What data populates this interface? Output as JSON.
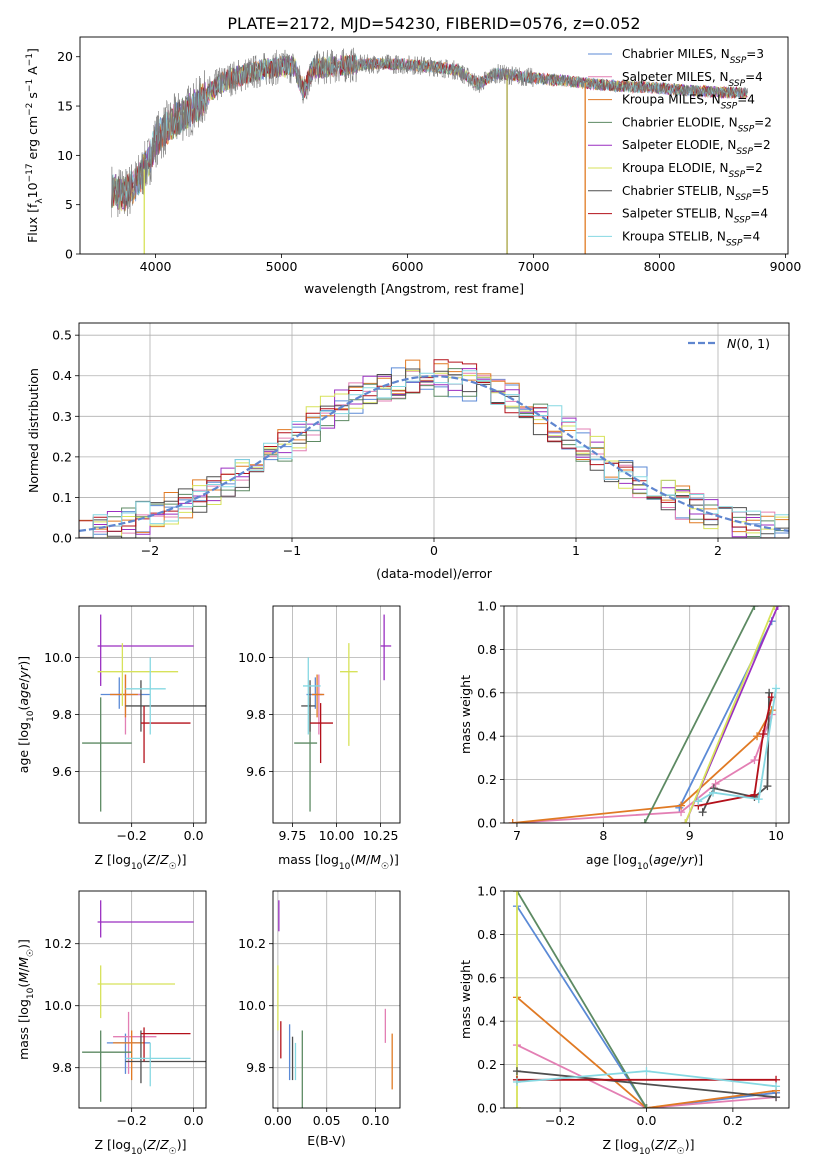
{
  "figure_title": "PLATE=2172, MJD=54230, FIBERID=0576, z=0.052",
  "colors": {
    "Chabrier MILES": "#5b8ad6",
    "Salpeter MILES": "#e37fb4",
    "Kroupa MILES": "#e07a24",
    "Chabrier ELODIE": "#5d8a63",
    "Salpeter ELODIE": "#9a2fc1",
    "Kroupa ELODIE": "#d7e25a",
    "Chabrier STELIB": "#4f4f4f",
    "Salpeter STELIB": "#b3101a",
    "Kroupa STELIB": "#86d8e2",
    "normal": "#5f86cf",
    "grid": "#b0b0b0"
  },
  "chart_data": [
    {
      "id": "spectrum",
      "type": "line",
      "title": "PLATE=2172, MJD=54230, FIBERID=0576, z=0.052",
      "xlabel": "wavelength [Angstrom, rest frame]",
      "ylabel": "Flux [f_λ 10^-17 erg cm^-2 s^-1 A^-1]",
      "xlim": [
        3400,
        9020
      ],
      "ylim": [
        0,
        22
      ],
      "xticks": [
        4000,
        5000,
        6000,
        7000,
        8000,
        9000
      ],
      "yticks": [
        0,
        5,
        10,
        15,
        20
      ],
      "grid": false,
      "legend": "top-right",
      "series": [
        {
          "name": "Chabrier MILES, N_SSP=3",
          "nssp": "3"
        },
        {
          "name": "Salpeter MILES, N_SSP=4",
          "nssp": "4"
        },
        {
          "name": "Kroupa MILES, N_SSP=4",
          "nssp": "4"
        },
        {
          "name": "Chabrier ELODIE, N_SSP=2",
          "nssp": "2"
        },
        {
          "name": "Salpeter ELODIE, N_SSP=2",
          "nssp": "2"
        },
        {
          "name": "Kroupa ELODIE, N_SSP=2",
          "nssp": "2"
        },
        {
          "name": "Chabrier STELIB, N_SSP=5",
          "nssp": "5"
        },
        {
          "name": "Salpeter STELIB, N_SSP=4",
          "nssp": "4"
        },
        {
          "name": "Kroupa STELIB, N_SSP=4",
          "nssp": "4"
        }
      ],
      "continuum": [
        [
          3650,
          6.5
        ],
        [
          3750,
          6.0
        ],
        [
          3850,
          7.2
        ],
        [
          3950,
          9.5
        ],
        [
          4000,
          11.5
        ],
        [
          4100,
          13.0
        ],
        [
          4200,
          14.0
        ],
        [
          4300,
          14.8
        ],
        [
          4400,
          16.0
        ],
        [
          4500,
          17.2
        ],
        [
          4600,
          17.8
        ],
        [
          4700,
          18.2
        ],
        [
          4800,
          18.5
        ],
        [
          4900,
          18.8
        ],
        [
          5000,
          19.0
        ],
        [
          5100,
          19.0
        ],
        [
          5175,
          16.5
        ],
        [
          5250,
          18.8
        ],
        [
          5400,
          19.0
        ],
        [
          5600,
          19.2
        ],
        [
          5800,
          19.3
        ],
        [
          6000,
          19.2
        ],
        [
          6200,
          19.0
        ],
        [
          6400,
          18.6
        ],
        [
          6563,
          17.2
        ],
        [
          6700,
          18.3
        ],
        [
          6900,
          18.0
        ],
        [
          7100,
          17.7
        ],
        [
          7300,
          17.5
        ],
        [
          7500,
          17.2
        ],
        [
          7700,
          17.0
        ],
        [
          7900,
          16.9
        ],
        [
          8100,
          16.7
        ],
        [
          8300,
          16.5
        ],
        [
          8500,
          16.4
        ],
        [
          8700,
          16.3
        ]
      ],
      "data_range": [
        3650,
        8700
      ],
      "dropouts": [
        {
          "x": 3910,
          "y": 0
        },
        {
          "x": 6790,
          "y": 0
        },
        {
          "x": 7410,
          "y": 0
        }
      ]
    },
    {
      "id": "residuals",
      "type": "histogram",
      "xlabel": "(data-model)/error",
      "ylabel": "Normed distribution",
      "xlim": [
        -2.5,
        2.5
      ],
      "ylim": [
        0,
        0.53
      ],
      "xticks": [
        -2,
        -1,
        0,
        1,
        2
      ],
      "yticks": [
        0.0,
        0.1,
        0.2,
        0.3,
        0.4,
        0.5
      ],
      "grid": true,
      "legend": "top-right",
      "legend_label": "N(0,1)",
      "bin_width": 0.1
    },
    {
      "id": "age_vs_Z",
      "type": "errorbar",
      "xlabel": "Z [log10(Z/Z☉)]",
      "ylabel": "age [log10(age/yr)]",
      "xlim": [
        -0.37,
        0.04
      ],
      "ylim": [
        9.42,
        10.18
      ],
      "xticks": [
        -0.2,
        0.0
      ],
      "yticks": [
        9.6,
        9.8,
        10.0
      ],
      "grid": true,
      "points": [
        {
          "model": "Chabrier MILES",
          "x": -0.24,
          "y": 9.87,
          "xlo": -0.3,
          "xhi": -0.14,
          "ylo": 9.82,
          "yhi": 9.93
        },
        {
          "model": "Salpeter MILES",
          "x": -0.22,
          "y": 9.87,
          "xlo": -0.27,
          "xhi": -0.17,
          "ylo": 9.73,
          "yhi": 9.94
        },
        {
          "model": "Kroupa MILES",
          "x": -0.22,
          "y": 9.87,
          "xlo": -0.27,
          "xhi": -0.18,
          "ylo": 9.79,
          "yhi": 9.94
        },
        {
          "model": "Chabrier ELODIE",
          "x": -0.3,
          "y": 9.7,
          "xlo": -0.36,
          "xhi": -0.2,
          "ylo": 9.46,
          "yhi": 9.86
        },
        {
          "model": "Salpeter ELODIE",
          "x": -0.3,
          "y": 10.04,
          "xlo": -0.31,
          "xhi": 0.0,
          "ylo": 9.9,
          "yhi": 10.15
        },
        {
          "model": "Kroupa ELODIE",
          "x": -0.23,
          "y": 9.95,
          "xlo": -0.31,
          "xhi": -0.05,
          "ylo": 9.83,
          "yhi": 10.05
        },
        {
          "model": "Chabrier STELIB",
          "x": -0.17,
          "y": 9.83,
          "xlo": -0.22,
          "xhi": 0.04,
          "ylo": 9.74,
          "yhi": 9.92
        },
        {
          "model": "Salpeter STELIB",
          "x": -0.16,
          "y": 9.77,
          "xlo": -0.17,
          "xhi": -0.01,
          "ylo": 9.63,
          "yhi": 9.83
        },
        {
          "model": "Kroupa STELIB",
          "x": -0.14,
          "y": 9.89,
          "xlo": -0.22,
          "xhi": -0.09,
          "ylo": 9.73,
          "yhi": 10.0
        }
      ]
    },
    {
      "id": "age_vs_mass",
      "type": "errorbar",
      "xlabel": "mass [log10(M/M☉)]",
      "ylabel": "",
      "xlim": [
        9.64,
        10.36
      ],
      "ylim": [
        9.42,
        10.18
      ],
      "xticks": [
        9.75,
        10.0,
        10.25
      ],
      "yticks": [
        9.6,
        9.8,
        10.0
      ],
      "grid": true,
      "points": [
        {
          "model": "Chabrier MILES",
          "x": 9.88,
          "y": 9.87,
          "xlo": 9.83,
          "xhi": 9.92,
          "ylo": 9.82,
          "yhi": 9.93
        },
        {
          "model": "Salpeter MILES",
          "x": 9.9,
          "y": 9.87,
          "xlo": 9.86,
          "xhi": 9.93,
          "ylo": 9.73,
          "yhi": 9.94
        },
        {
          "model": "Kroupa MILES",
          "x": 9.89,
          "y": 9.87,
          "xlo": 9.86,
          "xhi": 9.93,
          "ylo": 9.79,
          "yhi": 9.94
        },
        {
          "model": "Chabrier ELODIE",
          "x": 9.85,
          "y": 9.7,
          "xlo": 9.76,
          "xhi": 9.89,
          "ylo": 9.46,
          "yhi": 9.86
        },
        {
          "model": "Salpeter ELODIE",
          "x": 10.27,
          "y": 10.04,
          "xlo": 10.25,
          "xhi": 10.31,
          "ylo": 9.92,
          "yhi": 10.15
        },
        {
          "model": "Kroupa ELODIE",
          "x": 10.07,
          "y": 9.95,
          "xlo": 10.02,
          "xhi": 10.12,
          "ylo": 9.69,
          "yhi": 10.05
        },
        {
          "model": "Chabrier STELIB",
          "x": 9.85,
          "y": 9.83,
          "xlo": 9.8,
          "xhi": 9.88,
          "ylo": 9.74,
          "yhi": 9.92
        },
        {
          "model": "Salpeter STELIB",
          "x": 9.91,
          "y": 9.77,
          "xlo": 9.85,
          "xhi": 9.98,
          "ylo": 9.63,
          "yhi": 9.84
        },
        {
          "model": "Kroupa STELIB",
          "x": 9.84,
          "y": 9.9,
          "xlo": 9.81,
          "xhi": 9.91,
          "ylo": 9.73,
          "yhi": 10.0
        }
      ]
    },
    {
      "id": "massweight_vs_age",
      "type": "line",
      "xlabel": "age [log10(age/yr)]",
      "ylabel": "mass weight",
      "xlim": [
        6.85,
        10.15
      ],
      "ylim": [
        0,
        1
      ],
      "xticks": [
        7,
        8,
        9,
        10
      ],
      "yticks": [
        0.0,
        0.2,
        0.4,
        0.6,
        0.8,
        1.0
      ],
      "grid": true,
      "series": [
        {
          "model": "Chabrier MILES",
          "points": [
            [
              8.88,
              0.07
            ],
            [
              9.95,
              0.93
            ]
          ]
        },
        {
          "model": "Salpeter MILES",
          "points": [
            [
              6.95,
              0.0
            ],
            [
              8.9,
              0.05
            ],
            [
              9.3,
              0.18
            ],
            [
              9.75,
              0.29
            ],
            [
              9.95,
              0.5
            ]
          ]
        },
        {
          "model": "Kroupa MILES",
          "points": [
            [
              6.95,
              0.0
            ],
            [
              8.9,
              0.08
            ],
            [
              9.78,
              0.4
            ],
            [
              9.95,
              0.52
            ]
          ]
        },
        {
          "model": "Chabrier ELODIE",
          "points": [
            [
              8.48,
              0.0
            ],
            [
              9.75,
              1.0
            ]
          ]
        },
        {
          "model": "Salpeter ELODIE",
          "points": [
            [
              8.95,
              0.0
            ],
            [
              10.02,
              1.0
            ]
          ]
        },
        {
          "model": "Kroupa ELODIE",
          "points": [
            [
              8.95,
              0.0
            ],
            [
              9.98,
              1.0
            ]
          ]
        },
        {
          "model": "Chabrier STELIB",
          "points": [
            [
              9.15,
              0.05
            ],
            [
              9.28,
              0.16
            ],
            [
              9.75,
              0.12
            ],
            [
              9.9,
              0.17
            ],
            [
              9.92,
              0.6
            ]
          ]
        },
        {
          "model": "Salpeter STELIB",
          "points": [
            [
              9.1,
              0.08
            ],
            [
              9.75,
              0.13
            ],
            [
              9.85,
              0.41
            ],
            [
              9.95,
              0.58
            ]
          ]
        },
        {
          "model": "Kroupa STELIB",
          "points": [
            [
              9.1,
              0.1
            ],
            [
              9.27,
              0.14
            ],
            [
              9.8,
              0.11
            ],
            [
              10.0,
              0.62
            ]
          ]
        }
      ]
    },
    {
      "id": "mass_vs_Z",
      "type": "errorbar",
      "xlabel": "Z [log10(Z/Z☉)]",
      "ylabel": "mass [log10(M/M☉)]",
      "xlim": [
        -0.37,
        0.04
      ],
      "ylim": [
        9.67,
        10.37
      ],
      "xticks": [
        -0.2,
        0.0
      ],
      "yticks": [
        9.8,
        10.0,
        10.2
      ],
      "grid": true,
      "points": [
        {
          "model": "Chabrier MILES",
          "x": -0.22,
          "y": 9.88,
          "xlo": -0.28,
          "xhi": -0.14,
          "ylo": 9.78,
          "yhi": 9.91
        },
        {
          "model": "Salpeter MILES",
          "x": -0.21,
          "y": 9.9,
          "xlo": -0.26,
          "xhi": -0.12,
          "ylo": 9.78,
          "yhi": 9.98
        },
        {
          "model": "Kroupa MILES",
          "x": -0.2,
          "y": 9.88,
          "xlo": -0.26,
          "xhi": -0.16,
          "ylo": 9.76,
          "yhi": 9.92
        },
        {
          "model": "Chabrier ELODIE",
          "x": -0.3,
          "y": 9.85,
          "xlo": -0.36,
          "xhi": -0.2,
          "ylo": 9.69,
          "yhi": 9.92
        },
        {
          "model": "Salpeter ELODIE",
          "x": -0.3,
          "y": 10.27,
          "xlo": -0.31,
          "xhi": 0.0,
          "ylo": 10.22,
          "yhi": 10.34
        },
        {
          "model": "Kroupa ELODIE",
          "x": -0.3,
          "y": 10.07,
          "xlo": -0.31,
          "xhi": -0.06,
          "ylo": 9.96,
          "yhi": 10.13
        },
        {
          "model": "Chabrier STELIB",
          "x": -0.17,
          "y": 9.82,
          "xlo": -0.22,
          "xhi": 0.04,
          "ylo": 9.75,
          "yhi": 9.92
        },
        {
          "model": "Salpeter STELIB",
          "x": -0.16,
          "y": 9.91,
          "xlo": -0.17,
          "xhi": -0.01,
          "ylo": 9.82,
          "yhi": 9.93
        },
        {
          "model": "Kroupa STELIB",
          "x": -0.14,
          "y": 9.83,
          "xlo": -0.22,
          "xhi": -0.01,
          "ylo": 9.74,
          "yhi": 9.88
        }
      ]
    },
    {
      "id": "mass_vs_ebv",
      "type": "errorbar",
      "xlabel": "E(B-V)",
      "ylabel": "",
      "xlim": [
        -0.005,
        0.125
      ],
      "ylim": [
        9.67,
        10.37
      ],
      "xticks": [
        0.0,
        0.05,
        0.1
      ],
      "yticks": [
        9.8,
        10.0,
        10.2
      ],
      "grid": true,
      "points": [
        {
          "model": "Chabrier MILES",
          "x": 0.012,
          "y": 9.85,
          "ylo": 9.76,
          "yhi": 9.94
        },
        {
          "model": "Salpeter MILES",
          "x": 0.11,
          "y": 9.9,
          "ylo": 9.88,
          "yhi": 9.99
        },
        {
          "model": "Kroupa MILES",
          "x": 0.117,
          "y": 9.85,
          "ylo": 9.73,
          "yhi": 9.91
        },
        {
          "model": "Chabrier ELODIE",
          "x": 0.025,
          "y": 9.85,
          "ylo": 9.67,
          "yhi": 9.92
        },
        {
          "model": "Salpeter ELODIE",
          "x": 0.001,
          "y": 10.27,
          "ylo": 10.24,
          "yhi": 10.34
        },
        {
          "model": "Kroupa ELODIE",
          "x": 0.0,
          "y": 10.07,
          "ylo": 9.92,
          "yhi": 10.13
        },
        {
          "model": "Chabrier STELIB",
          "x": 0.015,
          "y": 9.82,
          "ylo": 9.76,
          "yhi": 9.9
        },
        {
          "model": "Salpeter STELIB",
          "x": 0.003,
          "y": 9.91,
          "ylo": 9.83,
          "yhi": 9.95
        },
        {
          "model": "Kroupa STELIB",
          "x": 0.018,
          "y": 9.83,
          "ylo": 9.76,
          "yhi": 9.88
        }
      ]
    },
    {
      "id": "massweight_vs_Z",
      "type": "line",
      "xlabel": "Z [log10(Z/Z☉)]",
      "ylabel": "mass weight",
      "xlim": [
        -0.33,
        0.33
      ],
      "ylim": [
        0,
        1
      ],
      "xticks": [
        -0.2,
        0.0,
        0.2
      ],
      "yticks": [
        0.0,
        0.2,
        0.4,
        0.6,
        0.8,
        1.0
      ],
      "grid": true,
      "series": [
        {
          "model": "Chabrier MILES",
          "points": [
            [
              -0.3,
              0.93
            ],
            [
              0.0,
              0.0
            ],
            [
              0.3,
              0.07
            ]
          ]
        },
        {
          "model": "Salpeter MILES",
          "points": [
            [
              -0.3,
              0.29
            ],
            [
              0.0,
              0.0
            ],
            [
              0.3,
              0.05
            ]
          ]
        },
        {
          "model": "Kroupa MILES",
          "points": [
            [
              -0.3,
              0.51
            ],
            [
              0.0,
              0.0
            ],
            [
              0.3,
              0.08
            ]
          ]
        },
        {
          "model": "Chabrier ELODIE",
          "points": [
            [
              -0.3,
              1.0
            ],
            [
              0.0,
              0.0
            ]
          ]
        },
        {
          "model": "Salpeter ELODIE",
          "points": [
            [
              -0.3,
              1.0
            ]
          ]
        },
        {
          "model": "Kroupa ELODIE",
          "points": [
            [
              -0.3,
              1.0
            ],
            [
              -0.3,
              0.0
            ]
          ]
        },
        {
          "model": "Chabrier STELIB",
          "points": [
            [
              -0.3,
              0.17
            ],
            [
              0.3,
              0.05
            ]
          ]
        },
        {
          "model": "Salpeter STELIB",
          "points": [
            [
              -0.3,
              0.13
            ],
            [
              0.3,
              0.13
            ]
          ]
        },
        {
          "model": "Kroupa STELIB",
          "points": [
            [
              -0.3,
              0.12
            ],
            [
              0.0,
              0.17
            ],
            [
              0.3,
              0.1
            ]
          ]
        }
      ]
    }
  ]
}
